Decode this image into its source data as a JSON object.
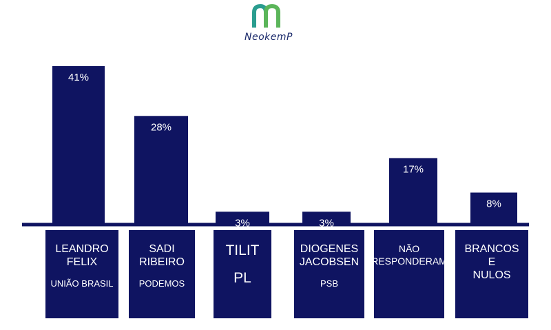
{
  "brand": {
    "name": "NeokemP",
    "colors": {
      "teal": "#2a9d8f",
      "green": "#5bb55a",
      "navy": "#1b2a6b"
    }
  },
  "colors": {
    "bar": "#0f1461",
    "axis": "#0f1461"
  },
  "chart_data": {
    "type": "bar",
    "categories": [
      "LEANDRO FELIX",
      "SADI RIBEIRO",
      "TILIT",
      "DIOGENES JACOBSEN",
      "NÃO RESPONDERAM",
      "BRANCOS E NULOS"
    ],
    "values": [
      41,
      28,
      3,
      3,
      17,
      8
    ],
    "value_labels": [
      "41%",
      "28%",
      "3%",
      "3%",
      "17%",
      "8%"
    ],
    "grid": false,
    "legend": "none"
  },
  "cards": [
    {
      "name": "LEANDRO\nFELIX",
      "party": "UNIÃO BRASIL"
    },
    {
      "name": "SADI\nRIBEIRO",
      "party": "PODEMOS"
    },
    {
      "name": "TILIT",
      "party": "PL"
    },
    {
      "name": "DIOGENES\nJACOBSEN",
      "party": "PSB"
    },
    {
      "name": "NÃO\nRESPONDERAM",
      "party": ""
    },
    {
      "name": "BRANCOS\nE\nNULOS",
      "party": ""
    }
  ]
}
